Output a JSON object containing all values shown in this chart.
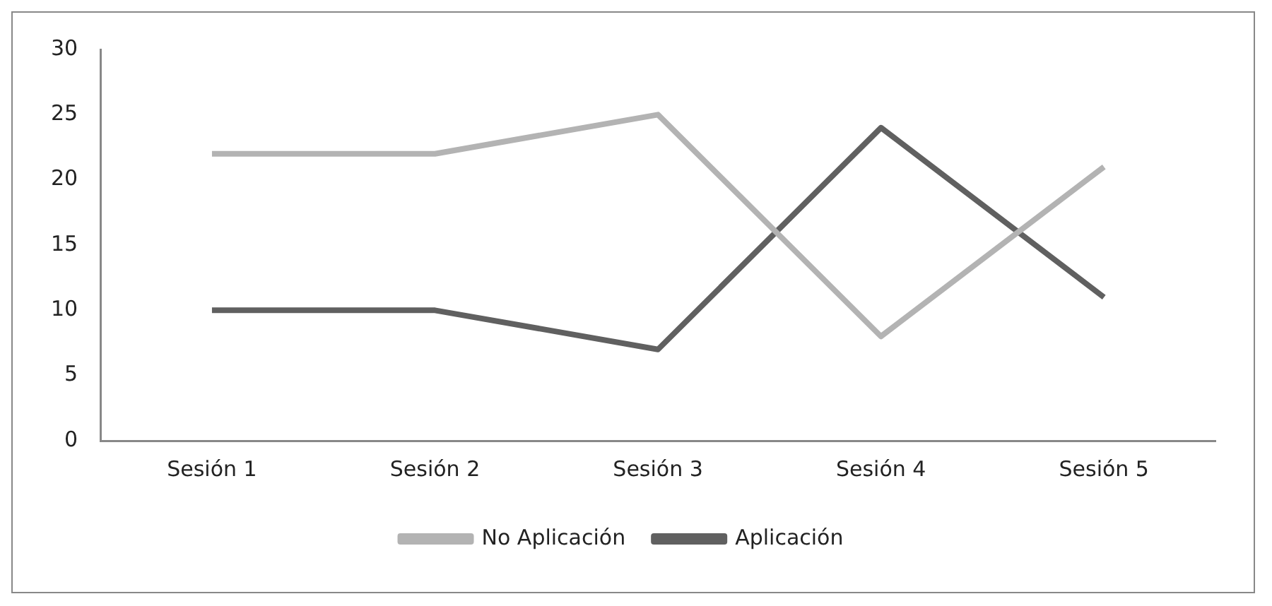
{
  "chart_data": {
    "type": "line",
    "categories": [
      "Sesión 1",
      "Sesión 2",
      "Sesión 3",
      "Sesión 4",
      "Sesión 5"
    ],
    "series": [
      {
        "name": "No Aplicación",
        "color": "#b3b3b3",
        "values": [
          22,
          22,
          25,
          8,
          21
        ]
      },
      {
        "name": "Aplicación",
        "color": "#606060",
        "values": [
          10,
          10,
          7,
          24,
          11
        ]
      }
    ],
    "ylim": [
      0,
      30
    ],
    "yticks": [
      0,
      5,
      10,
      15,
      20,
      25,
      30
    ],
    "grid": false,
    "legend": "bottom",
    "marker": "none"
  }
}
